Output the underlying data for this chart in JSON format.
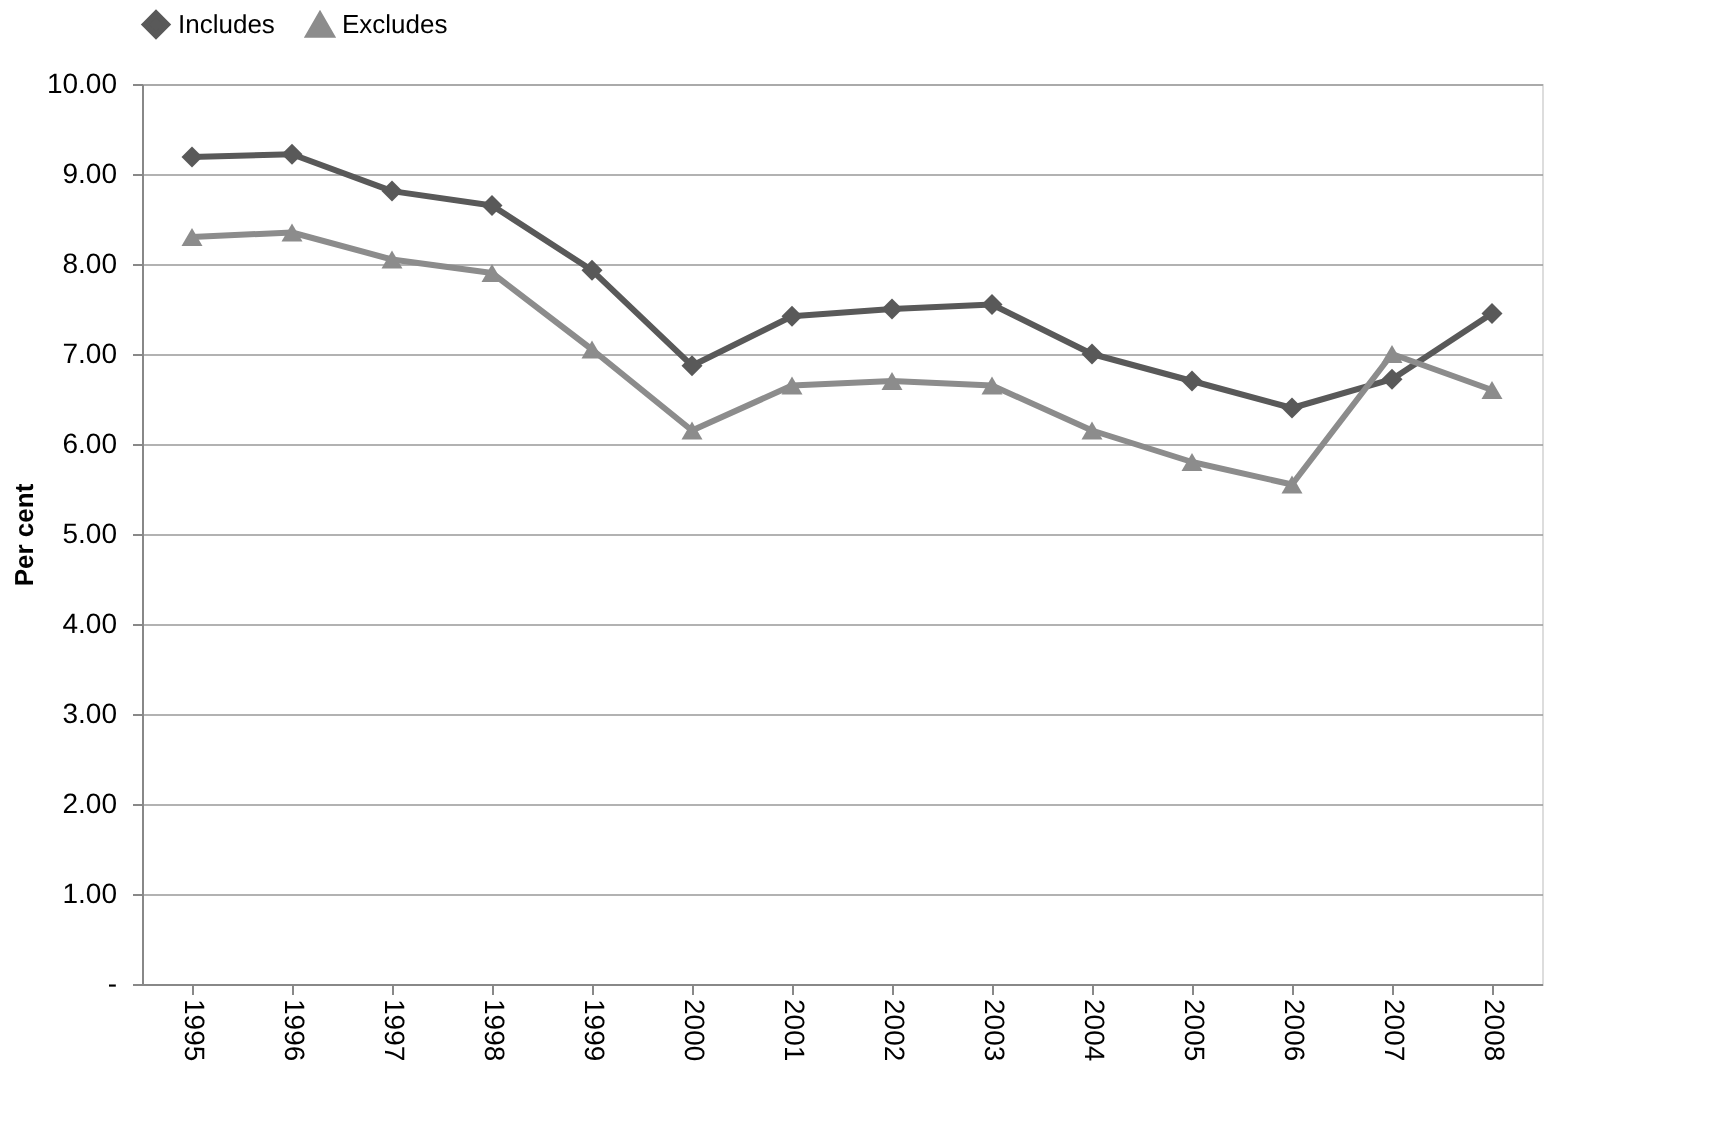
{
  "chart_data": {
    "type": "line",
    "ylabel": "Per cent",
    "categories": [
      "1995",
      "1996",
      "1997",
      "1998",
      "1999",
      "2000",
      "2001",
      "2002",
      "2003",
      "2004",
      "2005",
      "2006",
      "2007",
      "2008"
    ],
    "series": [
      {
        "name": "Includes",
        "color": "#595959",
        "marker": "diamond",
        "values": [
          9.19,
          9.22,
          8.81,
          8.65,
          7.93,
          6.87,
          7.42,
          7.5,
          7.55,
          7.0,
          6.7,
          6.4,
          6.72,
          7.45
        ]
      },
      {
        "name": "Excludes",
        "color": "#8c8c8c",
        "marker": "triangle",
        "values": [
          8.3,
          8.35,
          8.05,
          7.9,
          7.05,
          6.15,
          6.65,
          6.7,
          6.65,
          6.15,
          5.8,
          5.55,
          7.0,
          6.6
        ]
      }
    ],
    "ylim": [
      0,
      10
    ],
    "yticks": [
      {
        "value": 0,
        "label": "-"
      },
      {
        "value": 1,
        "label": "1.00"
      },
      {
        "value": 2,
        "label": "2.00"
      },
      {
        "value": 3,
        "label": "3.00"
      },
      {
        "value": 4,
        "label": "4.00"
      },
      {
        "value": 5,
        "label": "5.00"
      },
      {
        "value": 6,
        "label": "6.00"
      },
      {
        "value": 7,
        "label": "7.00"
      },
      {
        "value": 8,
        "label": "8.00"
      },
      {
        "value": 9,
        "label": "9.00"
      },
      {
        "value": 10,
        "label": "10.00"
      }
    ],
    "grid": "y",
    "legend": "top",
    "line_style": "solid"
  }
}
